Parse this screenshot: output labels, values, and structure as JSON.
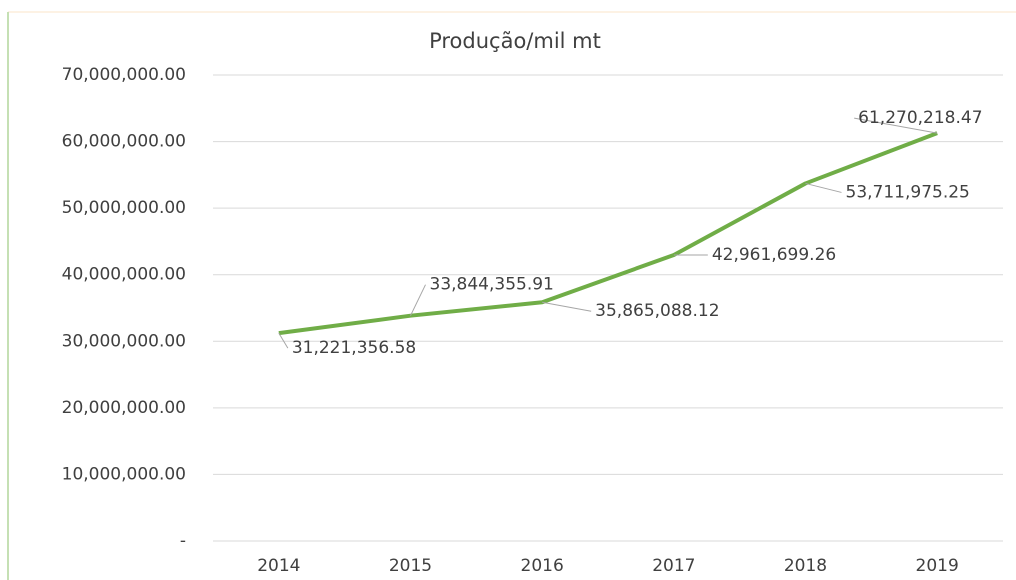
{
  "chart_data": {
    "type": "line",
    "title": "Produção/mil mt",
    "categories": [
      "2014",
      "2015",
      "2016",
      "2017",
      "2018",
      "2019"
    ],
    "series": [
      {
        "name": "Produção/mil mt",
        "color": "#70ad47",
        "values": [
          31221356.58,
          33844355.91,
          35865088.12,
          42961699.26,
          53711975.25,
          61270218.47
        ],
        "value_labels": [
          "31,221,356.58",
          "33,844,355.91",
          "35,865,088.12",
          "42,961,699.26",
          "53,711,975.25",
          "61,270,218.47"
        ]
      }
    ],
    "ylim": [
      0,
      70000000
    ],
    "yticks": [
      {
        "value": 0,
        "label": "-"
      },
      {
        "value": 10000000,
        "label": "10,000,000.00"
      },
      {
        "value": 20000000,
        "label": "20,000,000.00"
      },
      {
        "value": 30000000,
        "label": "30,000,000.00"
      },
      {
        "value": 40000000,
        "label": "40,000,000.00"
      },
      {
        "value": 50000000,
        "label": "50,000,000.00"
      },
      {
        "value": 60000000,
        "label": "60,000,000.00"
      },
      {
        "value": 70000000,
        "label": "70,000,000.00"
      }
    ],
    "grid": true
  }
}
